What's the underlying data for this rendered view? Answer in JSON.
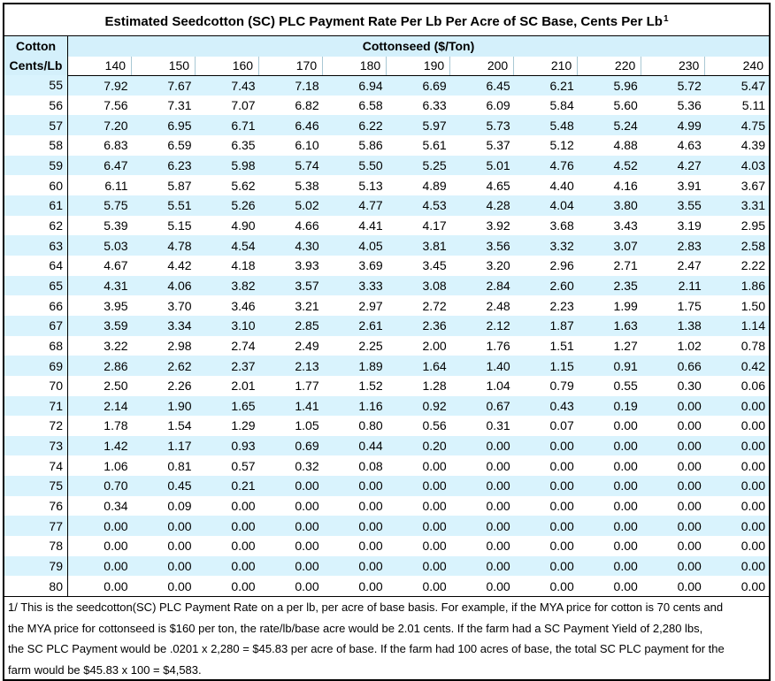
{
  "title": "Estimated Seedcotton (SC) PLC Payment Rate Per Lb Per Acre of SC Base, Cents Per Lb",
  "title_footnote_mark": "1",
  "row_header_line1": "Cotton",
  "row_header_line2": "Cents/Lb",
  "column_group_header": "Cottonseed ($/Ton)",
  "prices": [
    "140",
    "150",
    "160",
    "170",
    "180",
    "190",
    "200",
    "210",
    "220",
    "230",
    "240"
  ],
  "rows": [
    {
      "cents": "55",
      "values": [
        "7.92",
        "7.67",
        "7.43",
        "7.18",
        "6.94",
        "6.69",
        "6.45",
        "6.21",
        "5.96",
        "5.72",
        "5.47"
      ]
    },
    {
      "cents": "56",
      "values": [
        "7.56",
        "7.31",
        "7.07",
        "6.82",
        "6.58",
        "6.33",
        "6.09",
        "5.84",
        "5.60",
        "5.36",
        "5.11"
      ]
    },
    {
      "cents": "57",
      "values": [
        "7.20",
        "6.95",
        "6.71",
        "6.46",
        "6.22",
        "5.97",
        "5.73",
        "5.48",
        "5.24",
        "4.99",
        "4.75"
      ]
    },
    {
      "cents": "58",
      "values": [
        "6.83",
        "6.59",
        "6.35",
        "6.10",
        "5.86",
        "5.61",
        "5.37",
        "5.12",
        "4.88",
        "4.63",
        "4.39"
      ]
    },
    {
      "cents": "59",
      "values": [
        "6.47",
        "6.23",
        "5.98",
        "5.74",
        "5.50",
        "5.25",
        "5.01",
        "4.76",
        "4.52",
        "4.27",
        "4.03"
      ]
    },
    {
      "cents": "60",
      "values": [
        "6.11",
        "5.87",
        "5.62",
        "5.38",
        "5.13",
        "4.89",
        "4.65",
        "4.40",
        "4.16",
        "3.91",
        "3.67"
      ]
    },
    {
      "cents": "61",
      "values": [
        "5.75",
        "5.51",
        "5.26",
        "5.02",
        "4.77",
        "4.53",
        "4.28",
        "4.04",
        "3.80",
        "3.55",
        "3.31"
      ]
    },
    {
      "cents": "62",
      "values": [
        "5.39",
        "5.15",
        "4.90",
        "4.66",
        "4.41",
        "4.17",
        "3.92",
        "3.68",
        "3.43",
        "3.19",
        "2.95"
      ]
    },
    {
      "cents": "63",
      "values": [
        "5.03",
        "4.78",
        "4.54",
        "4.30",
        "4.05",
        "3.81",
        "3.56",
        "3.32",
        "3.07",
        "2.83",
        "2.58"
      ]
    },
    {
      "cents": "64",
      "values": [
        "4.67",
        "4.42",
        "4.18",
        "3.93",
        "3.69",
        "3.45",
        "3.20",
        "2.96",
        "2.71",
        "2.47",
        "2.22"
      ]
    },
    {
      "cents": "65",
      "values": [
        "4.31",
        "4.06",
        "3.82",
        "3.57",
        "3.33",
        "3.08",
        "2.84",
        "2.60",
        "2.35",
        "2.11",
        "1.86"
      ]
    },
    {
      "cents": "66",
      "values": [
        "3.95",
        "3.70",
        "3.46",
        "3.21",
        "2.97",
        "2.72",
        "2.48",
        "2.23",
        "1.99",
        "1.75",
        "1.50"
      ]
    },
    {
      "cents": "67",
      "values": [
        "3.59",
        "3.34",
        "3.10",
        "2.85",
        "2.61",
        "2.36",
        "2.12",
        "1.87",
        "1.63",
        "1.38",
        "1.14"
      ]
    },
    {
      "cents": "68",
      "values": [
        "3.22",
        "2.98",
        "2.74",
        "2.49",
        "2.25",
        "2.00",
        "1.76",
        "1.51",
        "1.27",
        "1.02",
        "0.78"
      ]
    },
    {
      "cents": "69",
      "values": [
        "2.86",
        "2.62",
        "2.37",
        "2.13",
        "1.89",
        "1.64",
        "1.40",
        "1.15",
        "0.91",
        "0.66",
        "0.42"
      ]
    },
    {
      "cents": "70",
      "values": [
        "2.50",
        "2.26",
        "2.01",
        "1.77",
        "1.52",
        "1.28",
        "1.04",
        "0.79",
        "0.55",
        "0.30",
        "0.06"
      ]
    },
    {
      "cents": "71",
      "values": [
        "2.14",
        "1.90",
        "1.65",
        "1.41",
        "1.16",
        "0.92",
        "0.67",
        "0.43",
        "0.19",
        "0.00",
        "0.00"
      ]
    },
    {
      "cents": "72",
      "values": [
        "1.78",
        "1.54",
        "1.29",
        "1.05",
        "0.80",
        "0.56",
        "0.31",
        "0.07",
        "0.00",
        "0.00",
        "0.00"
      ]
    },
    {
      "cents": "73",
      "values": [
        "1.42",
        "1.17",
        "0.93",
        "0.69",
        "0.44",
        "0.20",
        "0.00",
        "0.00",
        "0.00",
        "0.00",
        "0.00"
      ]
    },
    {
      "cents": "74",
      "values": [
        "1.06",
        "0.81",
        "0.57",
        "0.32",
        "0.08",
        "0.00",
        "0.00",
        "0.00",
        "0.00",
        "0.00",
        "0.00"
      ]
    },
    {
      "cents": "75",
      "values": [
        "0.70",
        "0.45",
        "0.21",
        "0.00",
        "0.00",
        "0.00",
        "0.00",
        "0.00",
        "0.00",
        "0.00",
        "0.00"
      ]
    },
    {
      "cents": "76",
      "values": [
        "0.34",
        "0.09",
        "0.00",
        "0.00",
        "0.00",
        "0.00",
        "0.00",
        "0.00",
        "0.00",
        "0.00",
        "0.00"
      ]
    },
    {
      "cents": "77",
      "values": [
        "0.00",
        "0.00",
        "0.00",
        "0.00",
        "0.00",
        "0.00",
        "0.00",
        "0.00",
        "0.00",
        "0.00",
        "0.00"
      ]
    },
    {
      "cents": "78",
      "values": [
        "0.00",
        "0.00",
        "0.00",
        "0.00",
        "0.00",
        "0.00",
        "0.00",
        "0.00",
        "0.00",
        "0.00",
        "0.00"
      ]
    },
    {
      "cents": "79",
      "values": [
        "0.00",
        "0.00",
        "0.00",
        "0.00",
        "0.00",
        "0.00",
        "0.00",
        "0.00",
        "0.00",
        "0.00",
        "0.00"
      ]
    },
    {
      "cents": "80",
      "values": [
        "0.00",
        "0.00",
        "0.00",
        "0.00",
        "0.00",
        "0.00",
        "0.00",
        "0.00",
        "0.00",
        "0.00",
        "0.00"
      ]
    }
  ],
  "footnote_lines": [
    "1/ This is the seedcotton(SC) PLC Payment Rate on a per lb, per acre of base basis.  For example, if the MYA price for cotton is 70 cents and",
    "the MYA price for cottonseed is $160 per ton, the rate/lb/base acre would be 2.01 cents.  If the farm had a SC Payment Yield of 2,280 lbs,",
    "the SC PLC Payment would be .0201 x 2,280 = $45.83 per acre of base.  If the farm had 100 acres of base, the total SC PLC payment for the",
    "farm would be $45.83 x 100 = $4,583."
  ]
}
